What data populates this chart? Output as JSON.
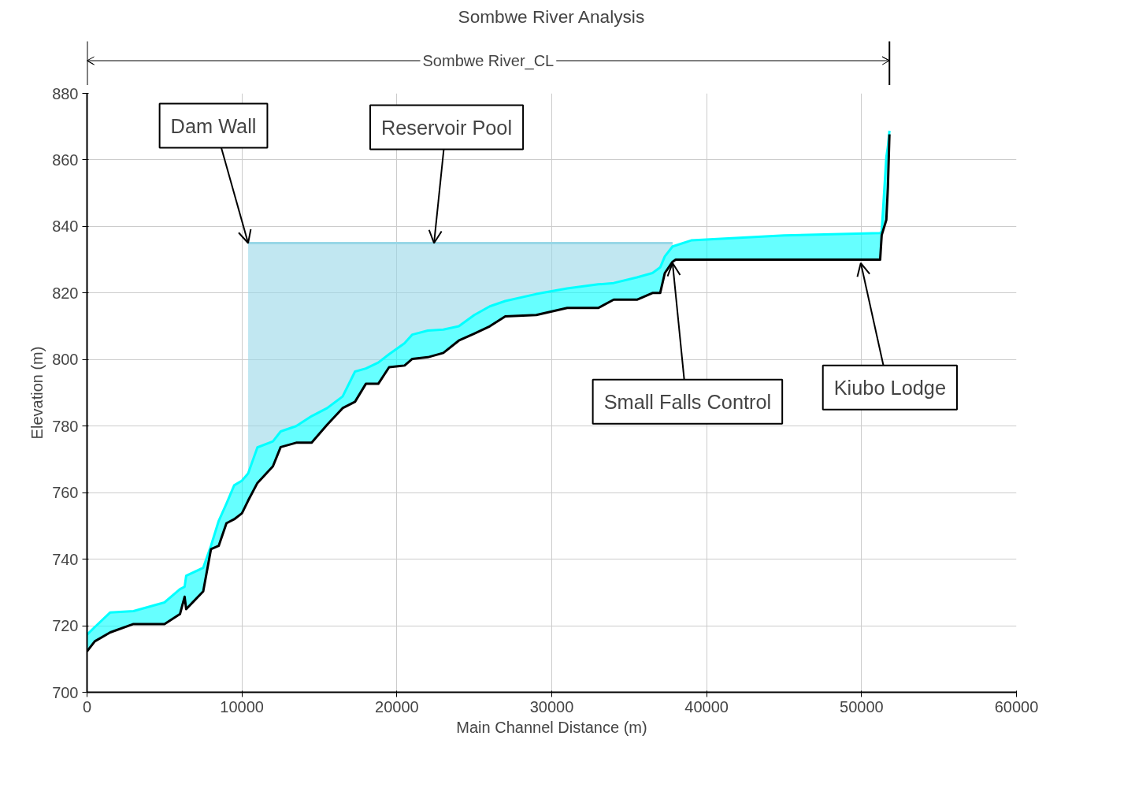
{
  "chart_data": {
    "type": "line",
    "title": "Sombwe River Analysis",
    "xlabel": "Main Channel Distance (m)",
    "ylabel": "Elevation (m)",
    "x": [
      0,
      500,
      1500,
      3000,
      5000,
      6000,
      6300,
      6400,
      7500,
      8000,
      8500,
      9000,
      9500,
      10000,
      10400,
      11000,
      12000,
      12500,
      13500,
      14500,
      15500,
      16500,
      17300,
      18000,
      18800,
      19500,
      20500,
      21000,
      22000,
      23000,
      24000,
      25000,
      26000,
      27000,
      29000,
      31000,
      33000,
      34000,
      35500,
      36500,
      37000,
      37300,
      37800,
      38000,
      39000,
      45000,
      51200,
      51300,
      51600,
      51700,
      51800
    ],
    "series": [
      {
        "color": "#00ffff",
        "values": [
          717.3,
          719.6,
          724,
          724.4,
          727,
          731,
          731.7,
          735,
          737.4,
          744,
          751.5,
          756.7,
          762.2,
          763.6,
          765.8,
          773.6,
          775.4,
          778.4,
          780,
          783,
          785.4,
          788.9,
          796.4,
          797.3,
          799.1,
          801.6,
          804.9,
          807.5,
          808.7,
          809,
          810,
          813.4,
          816,
          817.6,
          819.7,
          821.4,
          822.6,
          823,
          824.7,
          826,
          827.7,
          831,
          834,
          834.3,
          835.8,
          837.3,
          838,
          838.5,
          860.9,
          864,
          868.8
        ],
        "lower": [
          712.3,
          715.3,
          718,
          720.5,
          720.5,
          723.5,
          728.7,
          725,
          730.3,
          743,
          744,
          750.8,
          752,
          753.8,
          757.6,
          762.9,
          767.9,
          773.7,
          775,
          775,
          780.4,
          785.4,
          787.3,
          792.7,
          792.7,
          797.7,
          798.2,
          800.2,
          800.7,
          802,
          805.7,
          807.8,
          810,
          813,
          813.4,
          815.5,
          815.5,
          818,
          818,
          820,
          820,
          826,
          829.4,
          830,
          830,
          830,
          830,
          837.4,
          842,
          851.7,
          867.7
        ],
        "upper": [
          717.3,
          719.6,
          724,
          724.4,
          727,
          731,
          731.7,
          735,
          737.4,
          744,
          751.5,
          756.7,
          762.2,
          763.6,
          765.8,
          773.6,
          775.4,
          778.4,
          780,
          783,
          785.4,
          788.9,
          796.4,
          797.3,
          799.1,
          801.6,
          804.9,
          807.5,
          808.7,
          809,
          810,
          813.4,
          816,
          817.6,
          819.7,
          821.4,
          822.6,
          823,
          824.7,
          826,
          827.7,
          831,
          834,
          834.3,
          835.8,
          837.3,
          838,
          838.5,
          860.9,
          864,
          868.8
        ]
      },
      {
        "color": "#000000",
        "values": [
          712.3,
          715.3,
          718,
          720.5,
          720.5,
          723.5,
          728.7,
          725,
          730.3,
          743,
          744,
          750.8,
          752,
          753.8,
          757.6,
          762.9,
          767.9,
          773.7,
          775,
          775,
          780.4,
          785.4,
          787.3,
          792.7,
          792.7,
          797.7,
          798.2,
          800.2,
          800.7,
          802,
          805.7,
          807.8,
          810,
          813,
          813.4,
          815.5,
          815.5,
          818,
          818,
          820,
          820,
          826,
          829.4,
          830,
          830,
          830,
          830,
          837.4,
          842,
          851.7,
          867.7
        ]
      },
      {
        "color": "#98d7e7",
        "values": [
          null,
          null,
          null,
          null,
          null,
          null,
          null,
          null,
          null,
          null,
          null,
          null,
          null,
          null,
          835,
          835,
          835,
          835,
          835,
          835,
          835,
          835,
          835,
          835,
          835,
          835,
          835,
          835,
          835,
          835,
          835,
          835,
          835,
          835,
          835,
          835,
          835,
          835,
          835,
          835,
          835,
          835,
          835,
          null,
          null,
          null,
          null,
          null,
          null,
          null,
          null
        ],
        "lower": [
          null,
          null,
          null,
          null,
          null,
          null,
          null,
          null,
          null,
          null,
          null,
          null,
          null,
          null,
          765.8,
          773.6,
          775.4,
          778.4,
          780,
          783,
          785.4,
          788.9,
          796.4,
          797.3,
          799.1,
          801.6,
          804.9,
          807.5,
          808.7,
          809,
          810,
          813.4,
          816,
          817.6,
          819.7,
          821.4,
          822.6,
          823,
          824.7,
          826,
          827.7,
          831,
          834,
          null,
          null,
          null,
          null,
          null,
          null,
          null,
          null
        ],
        "upper": [
          null,
          null,
          null,
          null,
          null,
          null,
          null,
          null,
          null,
          null,
          null,
          null,
          null,
          null,
          835,
          835,
          835,
          835,
          835,
          835,
          835,
          835,
          835,
          835,
          835,
          835,
          835,
          835,
          835,
          835,
          835,
          835,
          835,
          835,
          835,
          835,
          835,
          835,
          835,
          835,
          835,
          835,
          835,
          null,
          null,
          null,
          null,
          null,
          null,
          null,
          null
        ]
      }
    ],
    "xlim": [
      0,
      60000
    ],
    "xticks": [
      0,
      10000,
      20000,
      30000,
      40000,
      50000,
      60000
    ],
    "ylim": [
      700,
      880
    ],
    "yticks": [
      700,
      720,
      740,
      760,
      780,
      800,
      820,
      840,
      860,
      880
    ],
    "grid": true,
    "annotations": [
      {
        "text": "Dam Wall",
        "x": 10400,
        "y": 835
      },
      {
        "text": "Reservoir Pool",
        "x": 22400,
        "y": 835
      },
      {
        "text": "Small Falls Control",
        "x": 37800,
        "y": 829
      },
      {
        "text": "Kiubo Lodge",
        "x": 49950,
        "y": 829
      },
      "Sombwe River_CL"
    ]
  }
}
